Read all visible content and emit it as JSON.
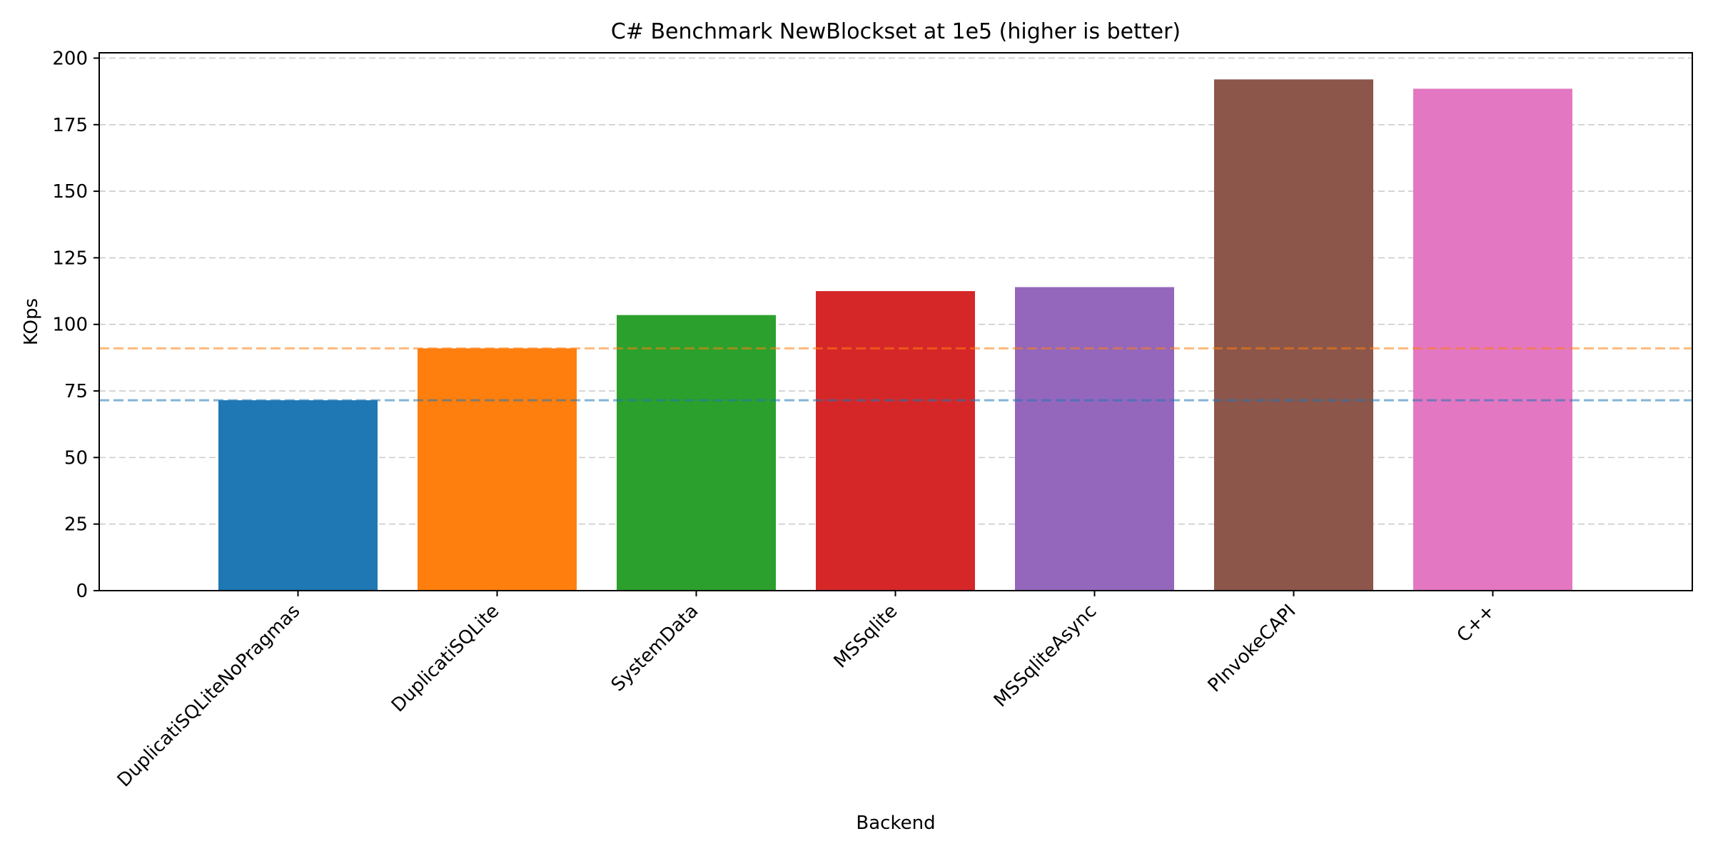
{
  "chart_data": {
    "type": "bar",
    "title": "C# Benchmark NewBlockset at 1e5 (higher is better)",
    "xlabel": "Backend",
    "ylabel": "KOps",
    "categories": [
      "DuplicatiSQLiteNoPragmas",
      "DuplicatiSQLite",
      "SystemData",
      "MSSqlite",
      "MSSqliteAsync",
      "PInvokeCAPI",
      "C++"
    ],
    "values": [
      71.5,
      91,
      103.5,
      112.5,
      114,
      192,
      188.5
    ],
    "colors": [
      "#1f77b4",
      "#ff7f0e",
      "#2ca02c",
      "#d62728",
      "#9467bd",
      "#8c564b",
      "#e377c2"
    ],
    "reference_lines": [
      {
        "value": 91,
        "color": "#ff7f0e"
      },
      {
        "value": 71.5,
        "color": "#1f77b4"
      }
    ],
    "ylim": [
      0,
      202
    ],
    "yticks": [
      0,
      25,
      50,
      75,
      100,
      125,
      150,
      175,
      200
    ],
    "grid": "horizontal dashed",
    "xtick_rotation": 45
  }
}
